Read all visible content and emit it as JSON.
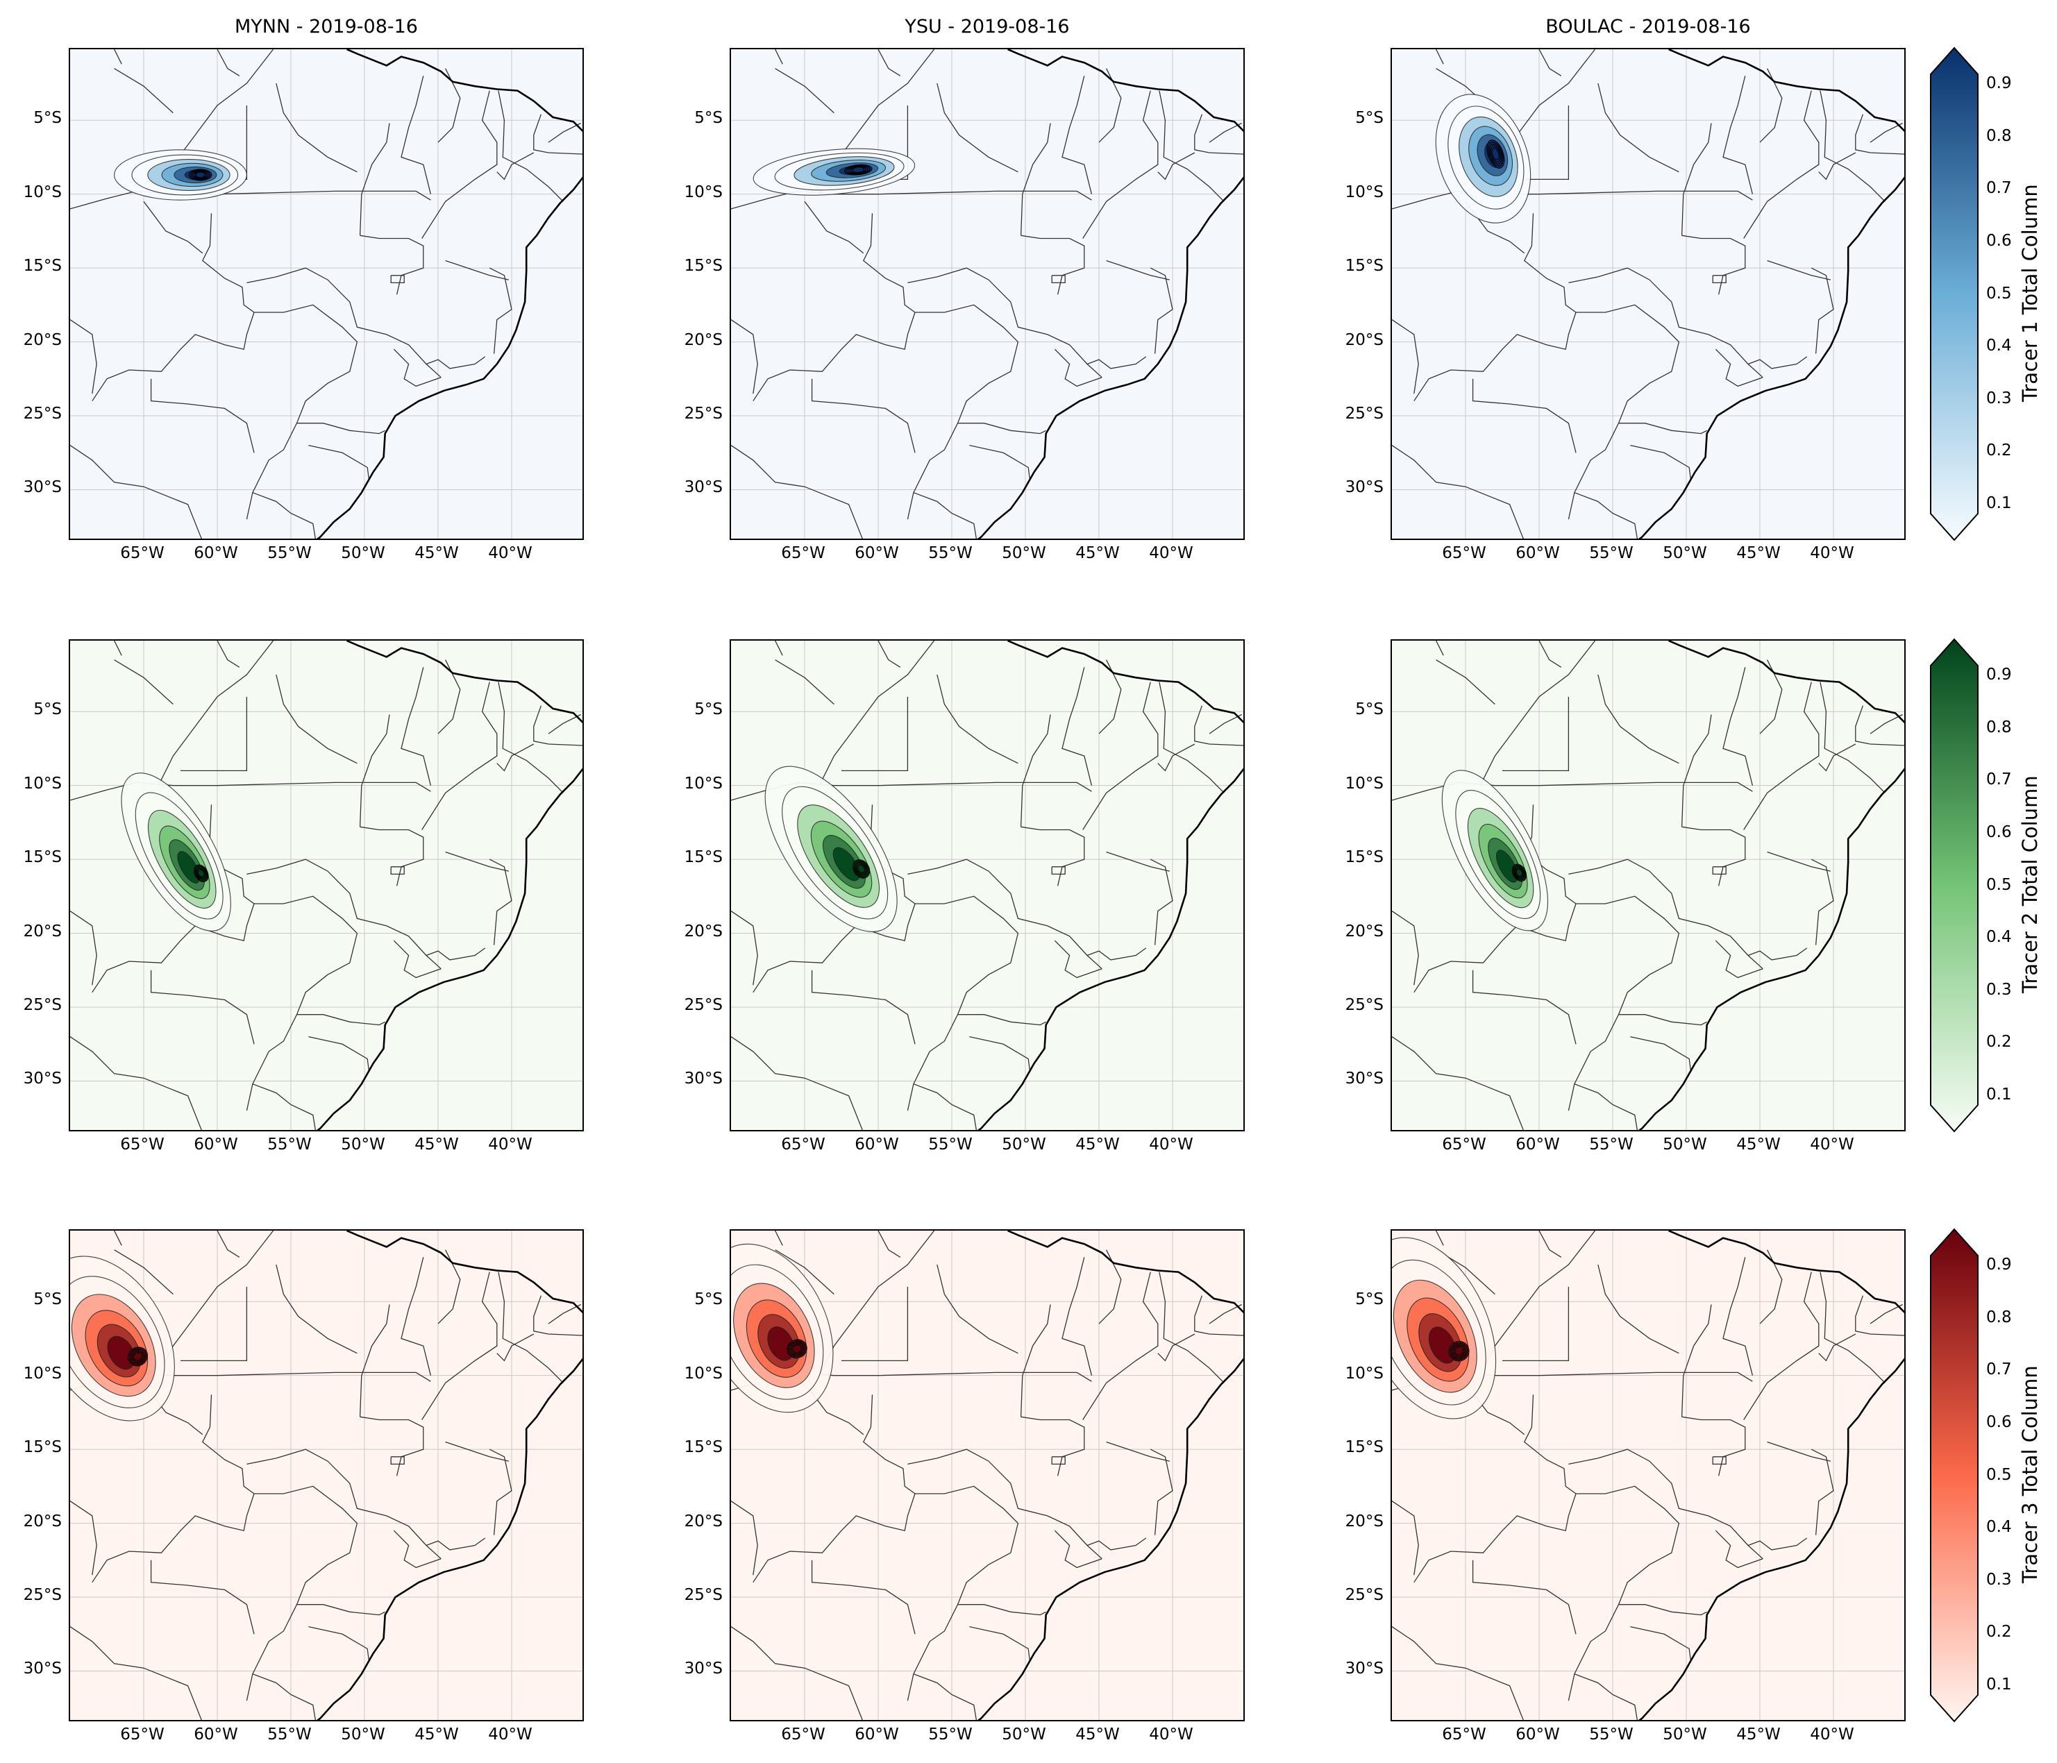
{
  "figure": {
    "rows": [
      {
        "tracer": "Tracer 1 Total Column",
        "colormap": "Blues",
        "bg_color": "#f4f8fd",
        "color_low": "#f7fbff",
        "color_mid": "#6baed6",
        "color_high": "#08306b",
        "panels": [
          {
            "title": "MYNN - 2019-08-16",
            "plume": [
              {
                "lon": -62.5,
                "lat": -8.7,
                "w": 4.5,
                "h": 1.7,
                "angle": 0
              }
            ]
          },
          {
            "title": "YSU - 2019-08-16",
            "plume": [
              {
                "lon": -63.0,
                "lat": -8.5,
                "w": 5.5,
                "h": 1.5,
                "angle": -5
              }
            ]
          },
          {
            "title": "BOULAC - 2019-08-16",
            "plume": [
              {
                "lon": -63.8,
                "lat": -7.6,
                "w": 3.0,
                "h": 4.5,
                "angle": -20
              }
            ]
          }
        ]
      },
      {
        "tracer": "Tracer 2 Total Column",
        "colormap": "Greens",
        "bg_color": "#f5faf3",
        "color_low": "#f7fcf5",
        "color_mid": "#74c476",
        "color_high": "#00441b",
        "panels": [
          {
            "title": "",
            "plume": [
              {
                "lon": -62.8,
                "lat": -14.5,
                "w": 2.5,
                "h": 6.0,
                "angle": -30
              }
            ]
          },
          {
            "title": "",
            "plume": [
              {
                "lon": -63.2,
                "lat": -14.3,
                "w": 3.0,
                "h": 6.5,
                "angle": -35
              }
            ]
          },
          {
            "title": "",
            "plume": [
              {
                "lon": -63.0,
                "lat": -14.4,
                "w": 2.5,
                "h": 6.0,
                "angle": -28
              }
            ]
          }
        ]
      },
      {
        "tracer": "Tracer 3 Total Column",
        "colormap": "Reds",
        "bg_color": "#fff4f0",
        "color_low": "#fff5f0",
        "color_mid": "#fb6a4a",
        "color_high": "#67000d",
        "panels": [
          {
            "title": "",
            "plume": [
              {
                "lon": -67.5,
                "lat": -7.5,
                "w": 4.0,
                "h": 6.0,
                "angle": -30
              }
            ]
          },
          {
            "title": "",
            "plume": [
              {
                "lon": -67.5,
                "lat": -6.8,
                "w": 4.0,
                "h": 6.0,
                "angle": -25
              }
            ]
          },
          {
            "title": "",
            "plume": [
              {
                "lon": -67.5,
                "lat": -6.8,
                "w": 4.0,
                "h": 6.5,
                "angle": -25
              }
            ]
          }
        ]
      }
    ],
    "lon_ticks": [
      "65°W",
      "60°W",
      "55°W",
      "50°W",
      "45°W",
      "40°W"
    ],
    "lat_ticks": [
      "5°S",
      "10°S",
      "15°S",
      "20°S",
      "25°S",
      "30°S"
    ],
    "lon_values": [
      -65,
      -60,
      -55,
      -50,
      -45,
      -40
    ],
    "lat_values": [
      -5,
      -10,
      -15,
      -20,
      -25,
      -30
    ],
    "extent": {
      "lon_min": -70,
      "lon_max": -35,
      "lat_min": -33.5,
      "lat_max": -0.2
    },
    "colorbar_ticks": [
      "0.1",
      "0.2",
      "0.3",
      "0.4",
      "0.5",
      "0.6",
      "0.7",
      "0.8",
      "0.9"
    ],
    "colorbar_values": [
      0.1,
      0.2,
      0.3,
      0.4,
      0.5,
      0.6,
      0.7,
      0.8,
      0.9
    ],
    "colorbar_range": [
      0.1,
      0.9
    ],
    "gridlines": true
  }
}
